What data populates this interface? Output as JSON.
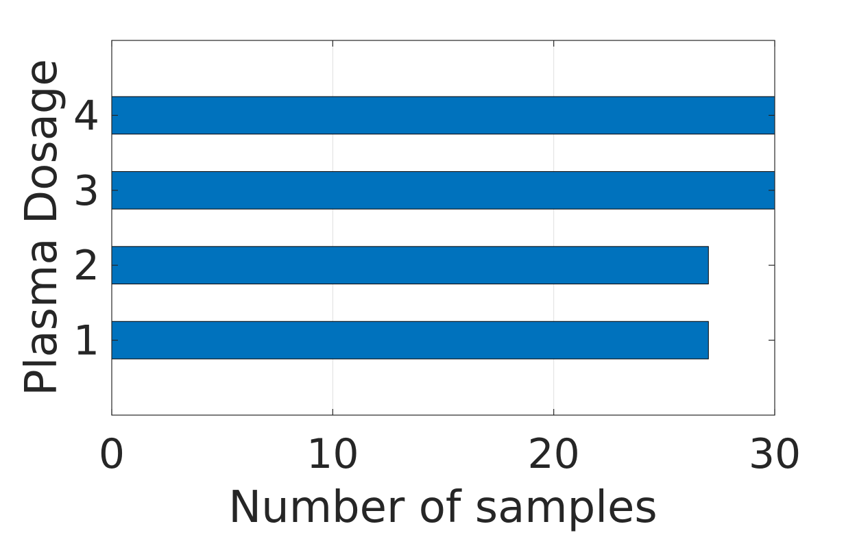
{
  "chart_data": {
    "type": "bar",
    "orientation": "horizontal",
    "categories": [
      "1",
      "2",
      "3",
      "4"
    ],
    "values": [
      27,
      27,
      30,
      30
    ],
    "xlabel": "Number of samples",
    "ylabel": "Plasma Dosage",
    "xlim": [
      0,
      30
    ],
    "ylim": [
      0,
      5
    ],
    "xticks": [
      0,
      10,
      20,
      30
    ],
    "grid": "vertical",
    "bar_color": "#0072BD"
  }
}
